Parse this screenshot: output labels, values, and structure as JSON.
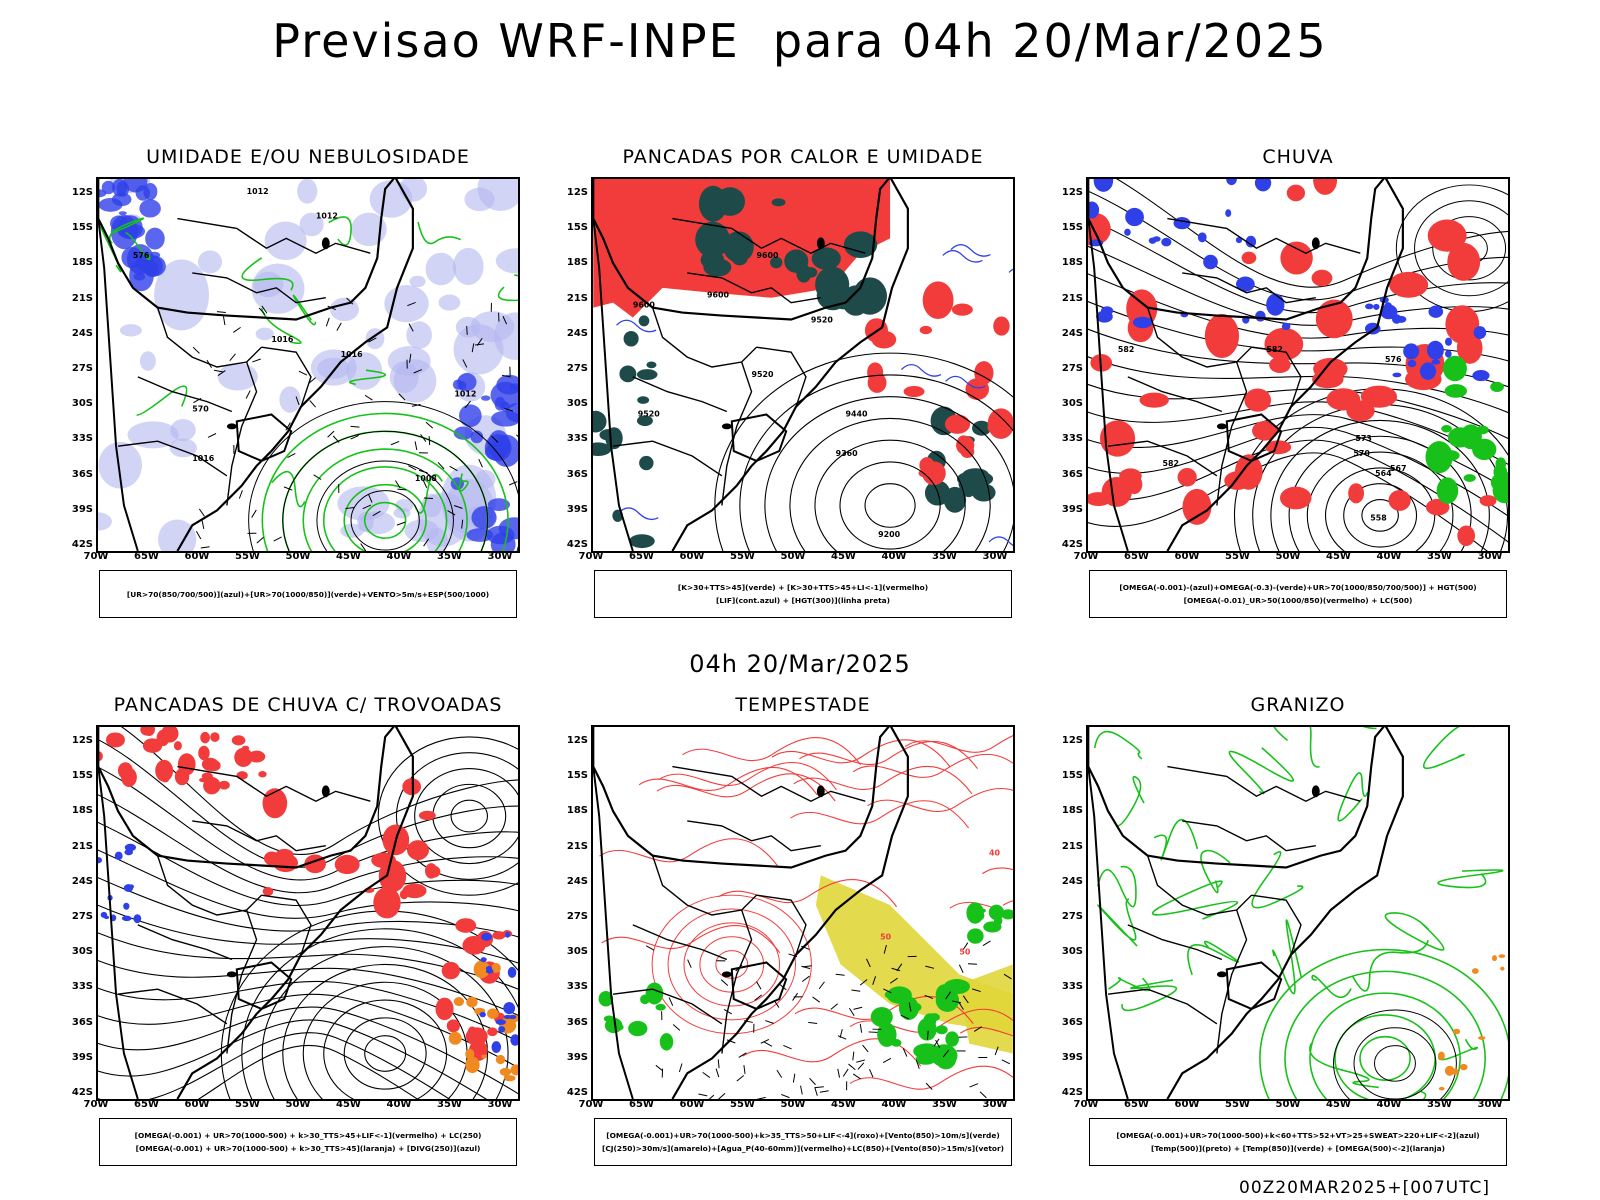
{
  "header": {
    "title": "Previsao WRF-INPE  para 04h 20/Mar/2025",
    "mid_title": "04h 20/Mar/2025",
    "footer": "00Z20MAR2025+[007UTC]"
  },
  "axes": {
    "lat_labels": [
      "12S",
      "15S",
      "18S",
      "21S",
      "24S",
      "27S",
      "30S",
      "33S",
      "36S",
      "39S",
      "42S"
    ],
    "lon_labels": [
      "70W",
      "65W",
      "60W",
      "55W",
      "50W",
      "45W",
      "40W",
      "35W",
      "30W"
    ]
  },
  "panels": [
    {
      "title": "UMIDADE E/OU NEBULOSIDADE",
      "legend": [
        "[UR>70(850/700/500)](azul)+[UR>70(1000/850)](verde)+VENTO>5m/s+ESP(500/1000)"
      ],
      "contour_labels": [
        "1012",
        "1012",
        "1016",
        "1016",
        "1016",
        "1012",
        "1008",
        "570",
        "576"
      ]
    },
    {
      "title": "PANCADAS POR CALOR E UMIDADE",
      "legend": [
        "[K>30+TTS>45](verde) + [K>30+TTS>45+LI<-1](vermelho)",
        "[LIF](cont.azul) + [HGT(300)](linha preta)"
      ],
      "contour_labels": [
        "9600",
        "9600",
        "9600",
        "9520",
        "9520",
        "9520",
        "9440",
        "9360",
        "9200"
      ]
    },
    {
      "title": "CHUVA",
      "legend": [
        "[OMEGA(-0.001)-(azul)+OMEGA(-0.3)-(verde)+UR>70(1000/850/700/500)] + HGT(500)",
        "[OMEGA(-0.01)_UR>50(1000/850)(vermelho) + LC(500)"
      ],
      "contour_labels": [
        "582",
        "582",
        "582",
        "576",
        "573",
        "570",
        "564",
        "567",
        "558"
      ]
    },
    {
      "title": "PANCADAS DE CHUVA C/ TROVOADAS",
      "legend": [
        "[OMEGA(-0.001) + UR>70(1000-500) + k>30_TTS>45+LIF<-1](vermelho) + LC(250)",
        "[OMEGA(-0.001) + UR>70(1000-500) + k>30_TTS>45](laranja) + [DIVG(250)](azul)"
      ],
      "contour_labels": []
    },
    {
      "title": "TEMPESTADE",
      "legend": [
        "[OMEGA(-0.001)+UR>70(1000-500)+k>35_TTS>50+LIF<-4](roxo)+[Vento(850)>10m/s](verde)",
        "[CJ(250)>30m/s](amarelo)+[Agua_P(40-60mm)](vermelho)+LC(850)+[Vento(850)>15m/s](vetor)"
      ],
      "contour_labels": [
        "50",
        "50",
        "40"
      ]
    },
    {
      "title": "GRANIZO",
      "legend": [
        "[OMEGA(-0.001)+UR>70(1000-500)+k<60+TTS>52+VT>25+SWEAT>220+LIF<-2](azul)",
        "[Temp(500)](preto) + [Temp(850)](verde) + [OMEGA(500)<-2](laranja)"
      ],
      "contour_labels": []
    }
  ],
  "colors": {
    "red": "#f23c3c",
    "green": "#17c11a",
    "blue": "#3040e8",
    "lightblue": "#b4b8f0",
    "teal": "#1f4a4a",
    "yellow": "#e0d63a",
    "orange": "#f08a20",
    "black": "#000000"
  }
}
